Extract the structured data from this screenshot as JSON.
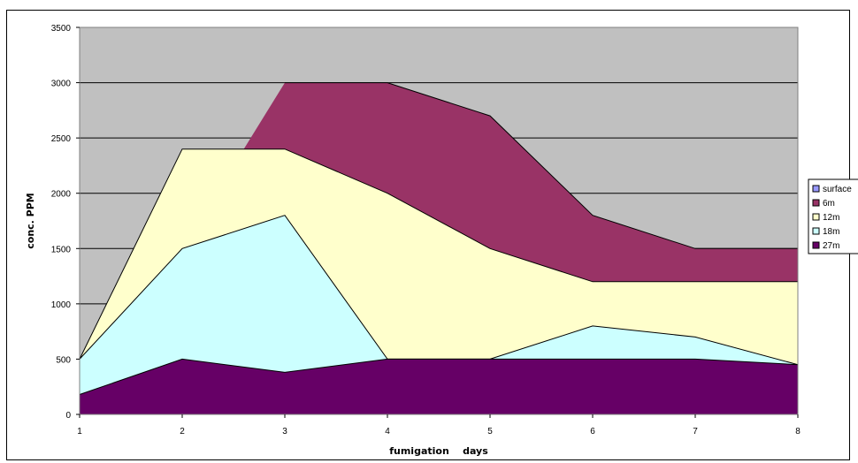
{
  "chart_data": {
    "type": "area",
    "stacking": "overlapping (drawn back-to-front)",
    "x": [
      1,
      2,
      3,
      4,
      5,
      6,
      7,
      8
    ],
    "xlabel": "fumigation    days",
    "ylabel": "conc. PPM",
    "ylim": [
      0,
      3500
    ],
    "yticks": [
      0,
      500,
      1000,
      1500,
      2000,
      2500,
      3000,
      3500
    ],
    "xticks": [
      1,
      2,
      3,
      4,
      5,
      6,
      7,
      8
    ],
    "grid": true,
    "plot_background": "#c0c0c0",
    "legend_position": "right",
    "series": [
      {
        "name": "surface",
        "color": "#9999ff",
        "values": [
          null,
          null,
          null,
          null,
          null,
          null,
          null,
          null
        ]
      },
      {
        "name": "6m",
        "color": "#993366",
        "values": [
          null,
          null,
          3000,
          3000,
          2700,
          1800,
          1500,
          1500
        ]
      },
      {
        "name": "12m",
        "color": "#ffffcc",
        "values": [
          500,
          2400,
          2400,
          2000,
          1500,
          1200,
          1200,
          1200
        ]
      },
      {
        "name": "18m",
        "color": "#ccffff",
        "values": [
          500,
          1500,
          1800,
          500,
          500,
          800,
          700,
          450
        ]
      },
      {
        "name": "27m",
        "color": "#660066",
        "values": [
          180,
          500,
          380,
          500,
          500,
          500,
          500,
          450
        ]
      }
    ]
  }
}
